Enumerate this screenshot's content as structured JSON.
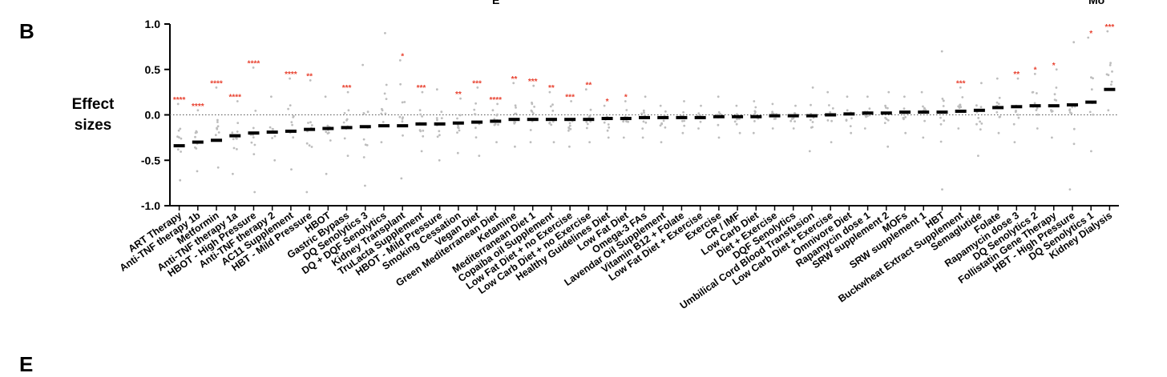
{
  "panel_letters": {
    "top": "B",
    "bottom": "E"
  },
  "fragments": {
    "left": "E",
    "right": "Mo"
  },
  "colors": {
    "point": "#bdbdbd",
    "mean": "#000000",
    "sig": "#e8412f",
    "zero": "#555555"
  },
  "chart_data": {
    "type": "scatter",
    "subtype": "dot-plot with mean bars",
    "ylabel": "Effect sizes",
    "ylim": [
      -1.0,
      1.0
    ],
    "yticks": [
      "1.0",
      "0.5",
      "0.0",
      "-0.5",
      "-1.0"
    ],
    "reference_line": 0,
    "grid": false,
    "categories": [
      "ART Therapy",
      "Anti-TNF therapy 1b",
      "Metformin",
      "Anti-TNF therapy 1a",
      "HBOT - High Pressure",
      "Anti-TNF therapy 2",
      "AC11 Supplement",
      "HBT - Mild Pressure",
      "HBOT",
      "Gastric Bypass",
      "DQ Senolytics 3",
      "DQ + DQF Senolytics",
      "Kidney Transplant",
      "TruLacta Supplement",
      "HBOT - Mild Pressure",
      "Smoking Cessation",
      "Vegan Diet",
      "Green Mediterranean Diet",
      "Ketamine",
      "Mediterranean Diet 1",
      "Copaiba oil Supplement",
      "Low Fat Diet + no Exercise",
      "Low Carb Diet + no Exercise",
      "Healthy Guidelines Diet",
      "Low Fat Diet",
      "Omega-3 FAs",
      "Lavendar Oil Supplement",
      "Vitamin B12 + Folate",
      "Low Fat Diet + Exercise",
      "Exercise",
      "CR / IMF",
      "Low Carb Diet",
      "Diet + Exercise",
      "DQF Senolytics",
      "Umbilical Cord Blood Transfusion",
      "Low Carb Diet + Exercise",
      "Omnivore Diet",
      "Rapamycin dose 1",
      "SRW supplement 2",
      "MOFs",
      "SRW supplement 1",
      "HBT",
      "Buckwheat Extract Supplement",
      "Semaglutide",
      "Folate",
      "Rapamycin dose 3",
      "DQ Senolytics 2",
      "Follistatin Gene Therapy",
      "HBT - High Pressure",
      "DQ Senolytics 1",
      "Kidney Dialysis"
    ],
    "means": [
      -0.34,
      -0.3,
      -0.28,
      -0.23,
      -0.2,
      -0.19,
      -0.18,
      -0.16,
      -0.15,
      -0.14,
      -0.13,
      -0.12,
      -0.12,
      -0.1,
      -0.1,
      -0.09,
      -0.08,
      -0.07,
      -0.05,
      -0.05,
      -0.05,
      -0.05,
      -0.05,
      -0.04,
      -0.04,
      -0.03,
      -0.03,
      -0.03,
      -0.03,
      -0.02,
      -0.02,
      -0.02,
      -0.01,
      -0.01,
      -0.01,
      0.0,
      0.01,
      0.02,
      0.02,
      0.03,
      0.03,
      0.03,
      0.04,
      0.05,
      0.08,
      0.09,
      0.1,
      0.1,
      0.11,
      0.14,
      0.28
    ],
    "significance": [
      "****",
      "****",
      "****",
      "****",
      "****",
      "",
      "****",
      "**",
      "",
      "***",
      "",
      "",
      "*",
      "***",
      "",
      "**",
      "***",
      "****",
      "**",
      "***",
      "**",
      "***",
      "**",
      "*",
      "*",
      "",
      "",
      "",
      "",
      "",
      "",
      "",
      "",
      "",
      "",
      "",
      "",
      "",
      "",
      "",
      "",
      "",
      "***",
      "",
      "",
      "**",
      "*",
      "*",
      "",
      "*",
      "***"
    ],
    "ranges": [
      [
        -0.72,
        0.12
      ],
      [
        -0.62,
        0.05
      ],
      [
        -0.58,
        0.3
      ],
      [
        -0.65,
        0.15
      ],
      [
        -0.85,
        0.52
      ],
      [
        -0.5,
        0.2
      ],
      [
        -0.6,
        0.4
      ],
      [
        -0.85,
        0.38
      ],
      [
        -0.65,
        0.2
      ],
      [
        -0.45,
        0.25
      ],
      [
        -0.78,
        0.55
      ],
      [
        -0.3,
        0.9
      ],
      [
        -0.7,
        0.6
      ],
      [
        -0.4,
        0.25
      ],
      [
        -0.5,
        0.28
      ],
      [
        -0.42,
        0.18
      ],
      [
        -0.45,
        0.3
      ],
      [
        -0.3,
        0.12
      ],
      [
        -0.35,
        0.35
      ],
      [
        -0.3,
        0.32
      ],
      [
        -0.3,
        0.25
      ],
      [
        -0.35,
        0.15
      ],
      [
        -0.3,
        0.28
      ],
      [
        -0.25,
        0.1
      ],
      [
        -0.25,
        0.15
      ],
      [
        -0.25,
        0.2
      ],
      [
        -0.3,
        0.1
      ],
      [
        -0.2,
        0.15
      ],
      [
        -0.15,
        0.1
      ],
      [
        -0.25,
        0.2
      ],
      [
        -0.2,
        0.1
      ],
      [
        -0.2,
        0.15
      ],
      [
        -0.15,
        0.12
      ],
      [
        -0.15,
        0.1
      ],
      [
        -0.4,
        0.3
      ],
      [
        -0.3,
        0.25
      ],
      [
        -0.2,
        0.2
      ],
      [
        -0.15,
        0.2
      ],
      [
        -0.35,
        0.25
      ],
      [
        -0.2,
        0.2
      ],
      [
        -0.25,
        0.25
      ],
      [
        -0.82,
        0.7
      ],
      [
        -0.15,
        0.3
      ],
      [
        -0.45,
        0.35
      ],
      [
        -0.2,
        0.4
      ],
      [
        -0.3,
        0.4
      ],
      [
        -0.15,
        0.45
      ],
      [
        -0.25,
        0.5
      ],
      [
        -0.82,
        0.8
      ],
      [
        -0.4,
        0.85
      ],
      [
        0.05,
        0.92
      ]
    ]
  }
}
